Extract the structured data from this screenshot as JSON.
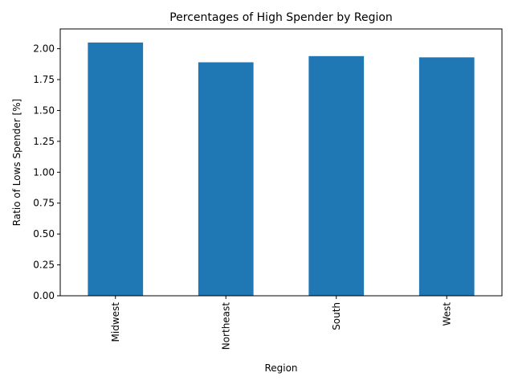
{
  "chart_data": {
    "type": "bar",
    "title": "Percentages of High Spender by Region",
    "xlabel": "Region",
    "ylabel": "Ratio of Lows Spender [%]",
    "categories": [
      "Midwest",
      "Northeast",
      "South",
      "West"
    ],
    "values": [
      2.05,
      1.89,
      1.94,
      1.93
    ],
    "ylim": [
      0,
      2.16
    ],
    "yticks": [
      "0.00",
      "0.25",
      "0.50",
      "0.75",
      "1.00",
      "1.25",
      "1.50",
      "1.75",
      "2.00"
    ],
    "grid": false,
    "legend": "none",
    "bar_color": "#1f77b4"
  }
}
